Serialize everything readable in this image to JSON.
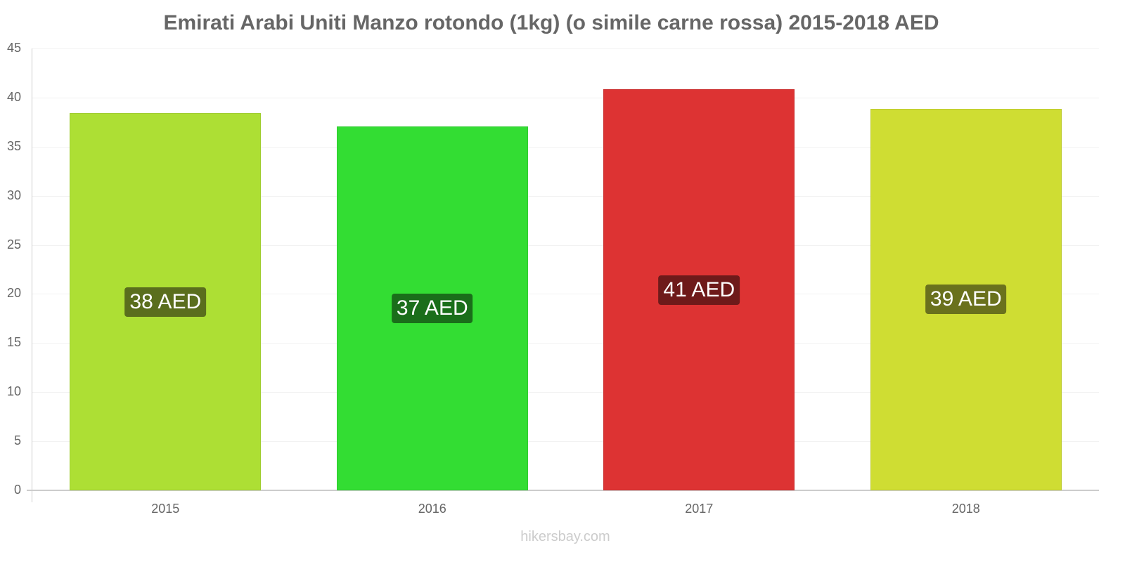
{
  "chart_data": {
    "type": "bar",
    "title": "Emirati Arabi Uniti Manzo rotondo (1kg) (o simile carne rossa) 2015-2018 AED",
    "xlabel": "",
    "ylabel": "",
    "categories": [
      "2015",
      "2016",
      "2017",
      "2018"
    ],
    "values": [
      38.4,
      37.05,
      40.85,
      38.85
    ],
    "data_labels": [
      "38 AED",
      "37 AED",
      "41 AED",
      "39 AED"
    ],
    "bar_colors": [
      "#addf34",
      "#33dd33",
      "#dd3333",
      "#cfdd33"
    ],
    "label_colors": [
      "#5a6e1d",
      "#1a6e1a",
      "#6e1a1a",
      "#6a711d"
    ],
    "ylim": [
      0,
      45
    ],
    "yticks": [
      0,
      5,
      10,
      15,
      20,
      25,
      30,
      35,
      40,
      45
    ],
    "grid": true,
    "legend": null
  },
  "watermark": "hikersbay.com"
}
